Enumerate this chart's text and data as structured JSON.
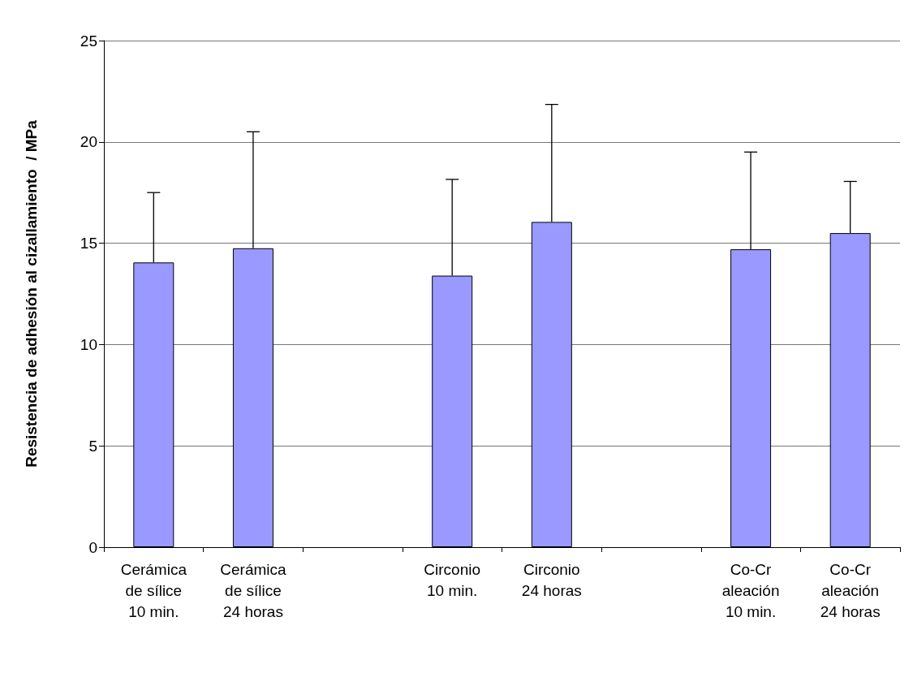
{
  "chart_data": {
    "type": "bar",
    "ylabel": "Resistencia de adhesión al cizallamiento  / MPa",
    "categories": [
      "Cerámica\nde sílice\n10 min.",
      "Cerámica\nde sílice\n24 horas",
      null,
      "Circonio\n10 min.",
      "Circonio\n24 horas",
      null,
      "Co-Cr\naleación\n10 min.",
      "Co-Cr\naleación\n24 horas"
    ],
    "values": [
      14.05,
      14.75,
      null,
      13.4,
      16.05,
      null,
      14.7,
      15.5
    ],
    "errors": [
      [
        14.05,
        17.5
      ],
      [
        14.75,
        20.5
      ],
      null,
      [
        13.4,
        18.15
      ],
      [
        16.05,
        21.85
      ],
      null,
      [
        14.7,
        19.5
      ],
      [
        15.5,
        18.05
      ]
    ],
    "color": "#9999ff",
    "ylim": [
      0,
      25
    ],
    "yticks": [
      0,
      5,
      10,
      15,
      20,
      25
    ],
    "grid": "y"
  }
}
